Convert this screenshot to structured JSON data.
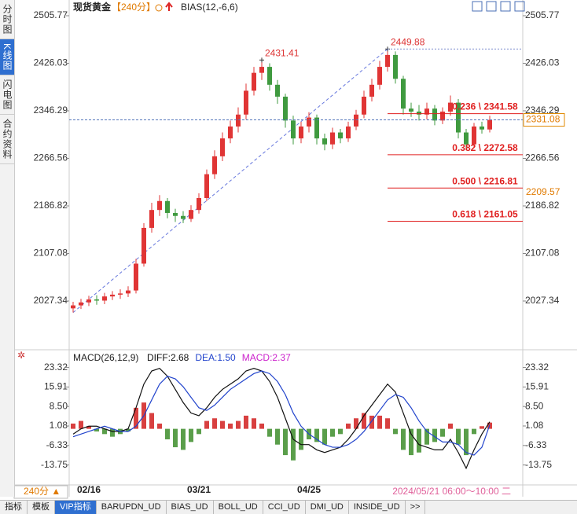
{
  "ui": {
    "side_tabs": [
      "分时图",
      "K线图",
      "闪电图",
      "合约资料"
    ],
    "active_side_tab": 1,
    "bottom_tabs": [
      "指标",
      "模板",
      "VIP指标",
      "BARUPDN_UD",
      "BIAS_UD",
      "BOLL_UD",
      "CCI_UD",
      "DMI_UD",
      "INSIDE_UD",
      ">>"
    ],
    "active_bottom_tab": 2
  },
  "header": {
    "symbol": "现货黄金",
    "period": "【240分】",
    "indicator": "BIAS(12,-6,6)"
  },
  "chart_data": [
    {
      "type": "candlestick",
      "categories": [
        null,
        null,
        "02/16",
        null,
        null,
        null,
        null,
        null,
        null,
        null,
        null,
        null,
        null,
        null,
        null,
        null,
        "03/21",
        null,
        null,
        null,
        null,
        null,
        null,
        null,
        null,
        null,
        null,
        null,
        null,
        null,
        "04/25",
        null,
        null,
        null,
        null,
        null,
        null,
        null,
        null,
        null,
        null,
        null,
        null,
        null,
        null,
        null,
        null,
        null,
        null,
        null,
        null,
        null,
        null,
        null
      ],
      "open": [
        2015,
        2020,
        2025,
        2030,
        2028,
        2035,
        2038,
        2040,
        2045,
        2090,
        2150,
        2180,
        2195,
        2175,
        2170,
        2165,
        2180,
        2200,
        2240,
        2270,
        2300,
        2320,
        2340,
        2380,
        2410,
        2420,
        2390,
        2370,
        2330,
        2300,
        2320,
        2335,
        2300,
        2290,
        2310,
        2300,
        2320,
        2340,
        2370,
        2390,
        2420,
        2440,
        2400,
        2350,
        2345,
        2340,
        2350,
        2330,
        2345,
        2360,
        2310,
        2290,
        2320,
        2315
      ],
      "high": [
        2026,
        2031,
        2036,
        2037,
        2041,
        2044,
        2047,
        2052,
        2098,
        2158,
        2192,
        2205,
        2200,
        2182,
        2178,
        2188,
        2208,
        2248,
        2280,
        2310,
        2330,
        2352,
        2392,
        2420,
        2431.41,
        2426,
        2398,
        2375,
        2338,
        2328,
        2344,
        2340,
        2308,
        2318,
        2316,
        2328,
        2348,
        2380,
        2400,
        2430,
        2449.88,
        2446,
        2405,
        2360,
        2356,
        2360,
        2356,
        2352,
        2372,
        2366,
        2316,
        2326,
        2328,
        2338
      ],
      "low": [
        2008,
        2014,
        2019,
        2021,
        2022,
        2029,
        2031,
        2034,
        2040,
        2085,
        2142,
        2170,
        2166,
        2160,
        2158,
        2160,
        2174,
        2195,
        2232,
        2262,
        2292,
        2310,
        2332,
        2372,
        2398,
        2380,
        2358,
        2318,
        2290,
        2292,
        2310,
        2290,
        2280,
        2282,
        2292,
        2294,
        2314,
        2334,
        2362,
        2382,
        2412,
        2392,
        2340,
        2336,
        2330,
        2332,
        2322,
        2324,
        2338,
        2300,
        2280,
        2284,
        2308,
        2310
      ],
      "close": [
        2020,
        2025,
        2030,
        2028,
        2035,
        2038,
        2040,
        2045,
        2090,
        2150,
        2180,
        2195,
        2175,
        2170,
        2165,
        2180,
        2200,
        2240,
        2270,
        2300,
        2320,
        2340,
        2380,
        2410,
        2420,
        2390,
        2370,
        2330,
        2300,
        2320,
        2335,
        2300,
        2290,
        2310,
        2300,
        2320,
        2340,
        2370,
        2390,
        2420,
        2440,
        2400,
        2350,
        2345,
        2340,
        2350,
        2330,
        2345,
        2360,
        2310,
        2290,
        2320,
        2315,
        2331.08
      ],
      "up_color": "#e03535",
      "down_color": "#3f9a3f",
      "ylim": [
        1952.2,
        2516.31
      ],
      "yticks": [
        2505.77,
        2426.03,
        2346.29,
        2266.56,
        2186.82,
        2107.08,
        2027.34
      ],
      "high_labels": [
        2431.41,
        2449.88
      ],
      "last_price": 2331.08,
      "reference_price": 2209.57,
      "fib_levels": [
        {
          "value": 2341.58,
          "label": "0.236 \\ 2341.58"
        },
        {
          "value": 2272.58,
          "label": "0.382 \\ 2272.58"
        },
        {
          "value": 2216.81,
          "label": "0.500 \\ 2216.81"
        },
        {
          "value": 2161.05,
          "label": "0.618 \\ 2161.05"
        }
      ],
      "period_label": "240分 ▲",
      "date_range_label": "2024/05/21 06:00～10:00 二"
    },
    {
      "type": "macd",
      "title": "MACD(26,12,9)",
      "series": [
        {
          "name": "DIFF:2.68",
          "color": "#111111",
          "values": [
            -2,
            0,
            1,
            1,
            0,
            -1,
            -1,
            0,
            8,
            17,
            22,
            23,
            20,
            15,
            10,
            6,
            5,
            8,
            12,
            15,
            17,
            19,
            22,
            23,
            22,
            18,
            12,
            4,
            -4,
            -6,
            -6,
            -8,
            -9,
            -8,
            -7,
            -4,
            0,
            5,
            9,
            13,
            17,
            14,
            6,
            -2,
            -6,
            -7,
            -8,
            -8,
            -4,
            -9,
            -15,
            -8,
            -2,
            2.68
          ]
        },
        {
          "name": "DEA:1.50",
          "color": "#2244cc",
          "values": [
            -3,
            -2,
            -1,
            0,
            1,
            0,
            -1,
            -1,
            1,
            5,
            11,
            17,
            20,
            19,
            16,
            12,
            8,
            7,
            9,
            12,
            15,
            17,
            19,
            21,
            22,
            21,
            18,
            13,
            6,
            1,
            -2,
            -4,
            -6,
            -7,
            -7,
            -6,
            -4,
            -1,
            3,
            7,
            11,
            13,
            12,
            8,
            3,
            -1,
            -3,
            -5,
            -5,
            -6,
            -9,
            -10,
            -7,
            1.5
          ]
        }
      ],
      "histogram": {
        "name": "MACD:2.37",
        "color": "#cc22cc",
        "up_color": "#d84040",
        "down_color": "#5a9e4a",
        "values": [
          2,
          3,
          1,
          -1,
          -2,
          -3,
          -2,
          -1,
          8,
          10,
          6,
          2,
          -4,
          -7,
          -8,
          -5,
          -2,
          3,
          4,
          3,
          2,
          3,
          5,
          4,
          2,
          -3,
          -6,
          -10,
          -12,
          -8,
          -4,
          -5,
          -6,
          -3,
          -2,
          2,
          4,
          6,
          5,
          5,
          4,
          -2,
          -8,
          -10,
          -9,
          -6,
          -5,
          -3,
          2,
          -6,
          -10,
          -2,
          1,
          2.37
        ]
      },
      "ylim": [
        -20.73,
        29.17
      ],
      "yticks": [
        23.32,
        15.91,
        {
          "value": 8.5,
          "label": "8.50"
        },
        1.08,
        -6.33,
        -13.75
      ]
    }
  ]
}
